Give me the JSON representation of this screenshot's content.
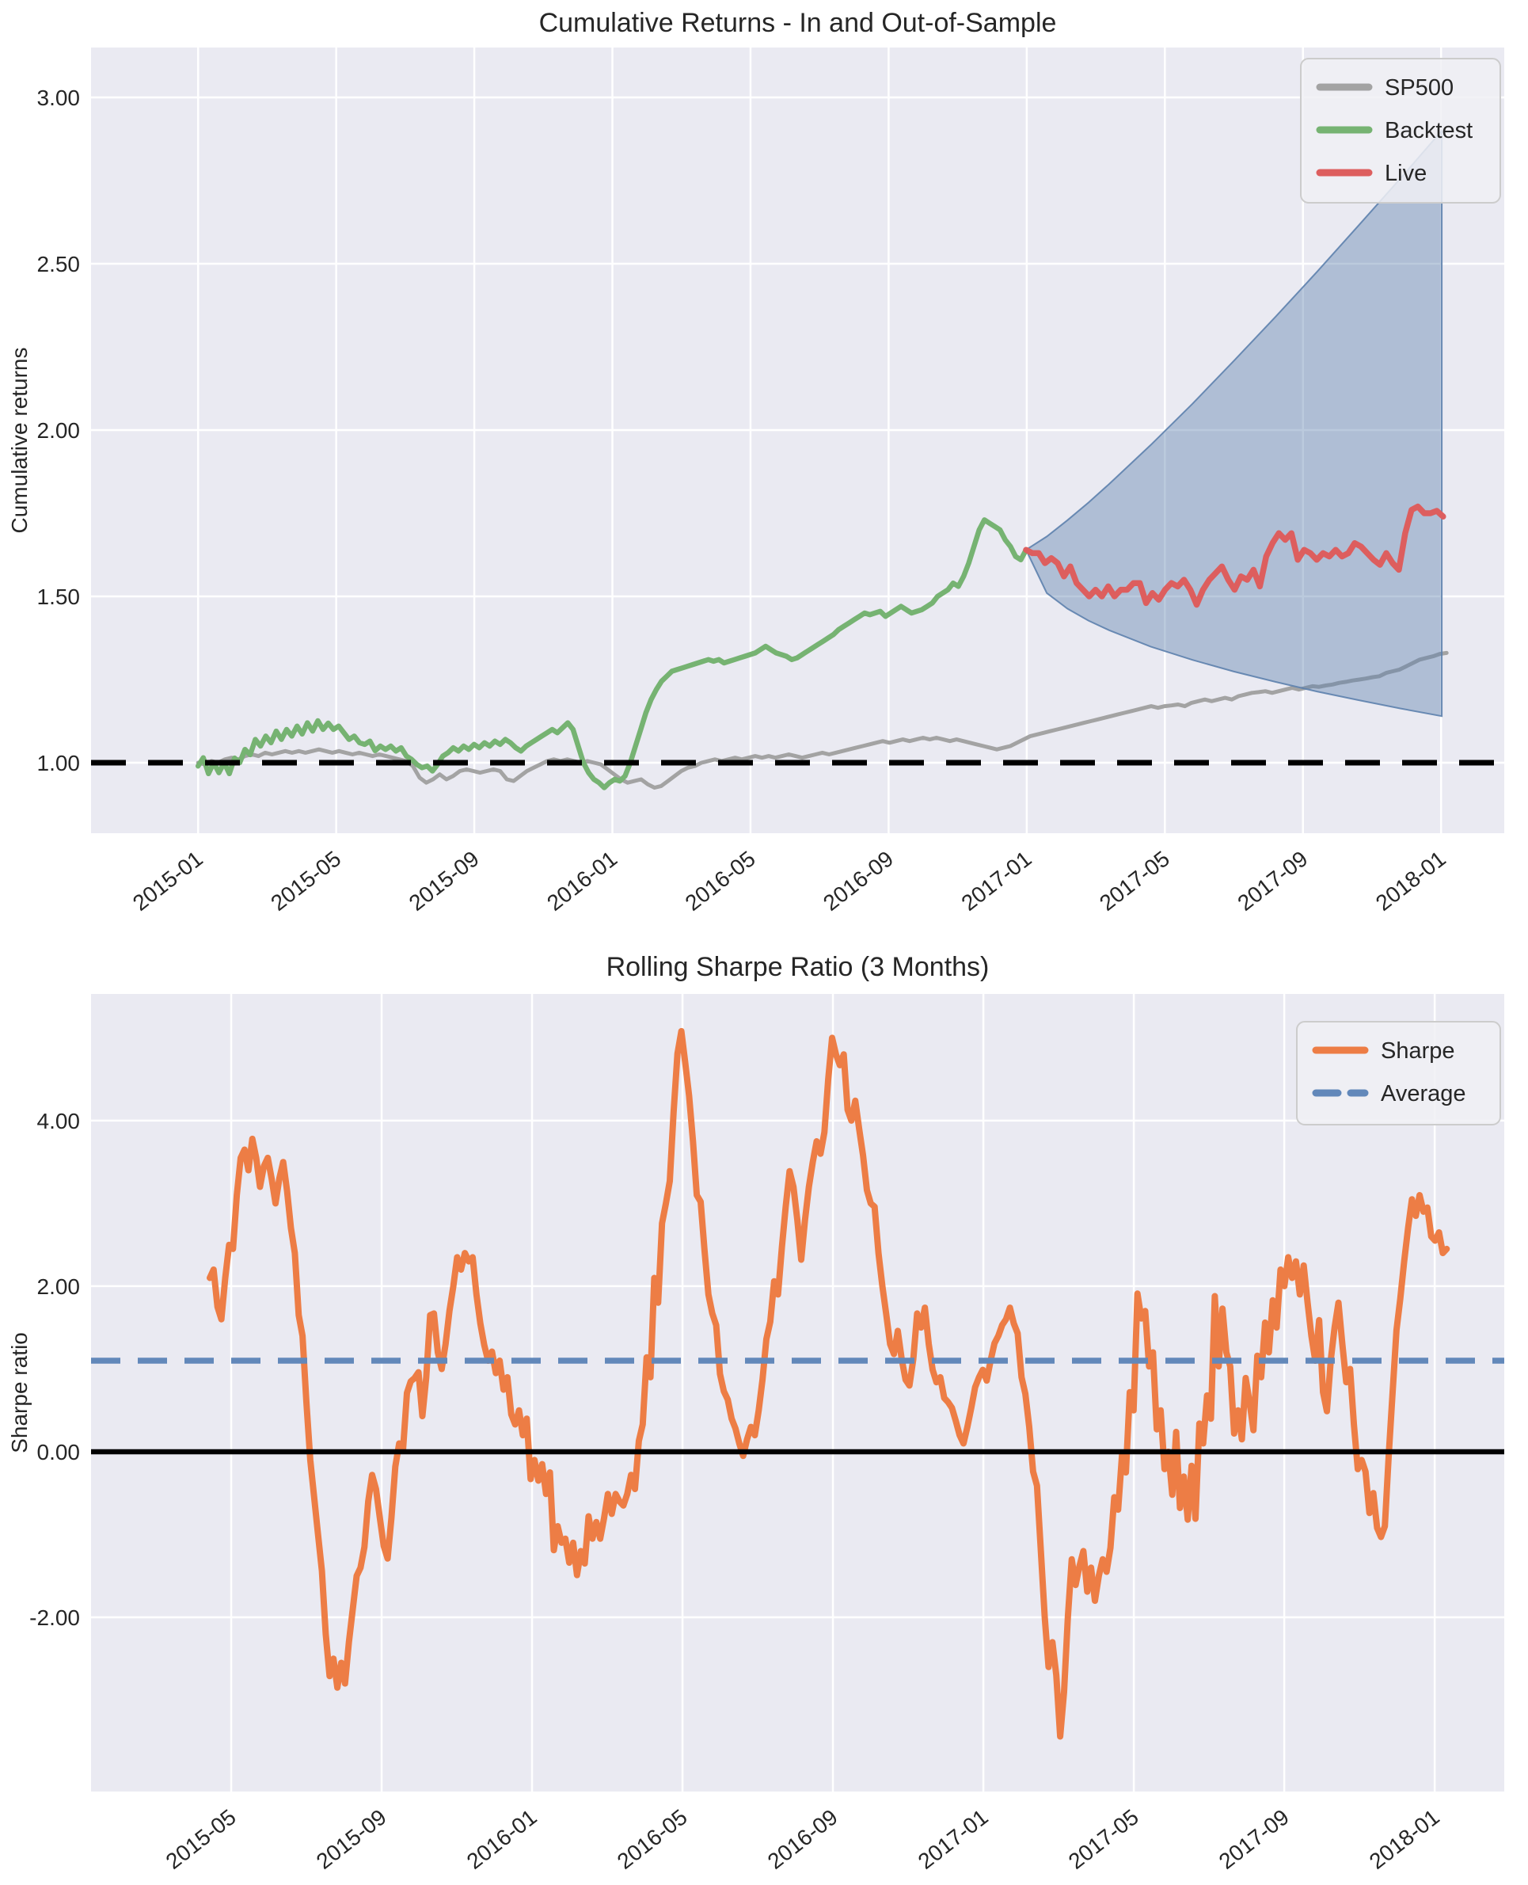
{
  "figure": {
    "background": "#ffffff",
    "plot_background": "#eaeaf2",
    "grid_color": "#ffffff",
    "text_color": "#262626"
  },
  "chart_data": [
    {
      "type": "line",
      "title": "Cumulative Returns - In and Out-of-Sample",
      "ylabel": "Cumulative returns",
      "x_unit": "months since 2015-01",
      "xlim": [
        -3.1,
        37.83
      ],
      "ylim": [
        0.788,
        3.15
      ],
      "grid": true,
      "legend_position": "upper right",
      "xticks": [
        {
          "m": 0,
          "label": "2015-01"
        },
        {
          "m": 4,
          "label": "2015-05"
        },
        {
          "m": 8,
          "label": "2015-09"
        },
        {
          "m": 12,
          "label": "2016-01"
        },
        {
          "m": 16,
          "label": "2016-05"
        },
        {
          "m": 20,
          "label": "2016-09"
        },
        {
          "m": 24,
          "label": "2017-01"
        },
        {
          "m": 28,
          "label": "2017-05"
        },
        {
          "m": 32,
          "label": "2017-09"
        },
        {
          "m": 36,
          "label": "2018-01"
        }
      ],
      "yticks": [
        {
          "v": 1.0,
          "label": "1.00"
        },
        {
          "v": 1.5,
          "label": "1.50"
        },
        {
          "v": 2.0,
          "label": "2.00"
        },
        {
          "v": 2.5,
          "label": "2.50"
        },
        {
          "v": 3.0,
          "label": "3.00"
        }
      ],
      "legend": [
        {
          "label": "SP500",
          "color": "#a3a3a3",
          "dash": false
        },
        {
          "label": "Backtest",
          "color": "#76b372",
          "dash": false
        },
        {
          "label": "Live",
          "color": "#dd5e5e",
          "dash": false
        }
      ],
      "baseline": {
        "v": 1.0,
        "color": "#000000",
        "style": "dashed"
      },
      "series": [
        {
          "name": "SP500",
          "color": "#a3a3a3",
          "width": 5,
          "x_start": 0,
          "x_end": 36.16,
          "values": [
            1.0,
            0.995,
            1.005,
            1.0,
            1.01,
            1.015,
            1.01,
            1.02,
            1.025,
            1.02,
            1.03,
            1.025,
            1.03,
            1.035,
            1.03,
            1.035,
            1.03,
            1.035,
            1.04,
            1.035,
            1.03,
            1.035,
            1.03,
            1.025,
            1.03,
            1.025,
            1.02,
            1.025,
            1.02,
            1.015,
            1.01,
            1.005,
            0.99,
            0.955,
            0.94,
            0.95,
            0.965,
            0.95,
            0.96,
            0.975,
            0.98,
            0.975,
            0.97,
            0.975,
            0.98,
            0.975,
            0.95,
            0.945,
            0.96,
            0.975,
            0.985,
            0.995,
            1.005,
            1.01,
            1.005,
            1.01,
            1.005,
            1.0,
            1.005,
            1.0,
            0.995,
            0.98,
            0.965,
            0.95,
            0.94,
            0.945,
            0.95,
            0.935,
            0.925,
            0.93,
            0.945,
            0.96,
            0.975,
            0.985,
            0.99,
            1.0,
            1.005,
            1.01,
            1.005,
            1.01,
            1.015,
            1.01,
            1.015,
            1.02,
            1.015,
            1.02,
            1.015,
            1.02,
            1.025,
            1.02,
            1.015,
            1.02,
            1.025,
            1.03,
            1.025,
            1.03,
            1.035,
            1.04,
            1.045,
            1.05,
            1.055,
            1.06,
            1.065,
            1.06,
            1.065,
            1.07,
            1.065,
            1.07,
            1.075,
            1.07,
            1.075,
            1.07,
            1.065,
            1.07,
            1.065,
            1.06,
            1.055,
            1.05,
            1.045,
            1.04,
            1.045,
            1.05,
            1.06,
            1.07,
            1.08,
            1.085,
            1.09,
            1.095,
            1.1,
            1.105,
            1.11,
            1.115,
            1.12,
            1.125,
            1.13,
            1.135,
            1.14,
            1.145,
            1.15,
            1.155,
            1.16,
            1.165,
            1.17,
            1.165,
            1.17,
            1.172,
            1.175,
            1.17,
            1.18,
            1.185,
            1.19,
            1.185,
            1.19,
            1.195,
            1.19,
            1.2,
            1.205,
            1.21,
            1.212,
            1.215,
            1.21,
            1.215,
            1.22,
            1.225,
            1.22,
            1.225,
            1.23,
            1.228,
            1.232,
            1.235,
            1.24,
            1.243,
            1.247,
            1.25,
            1.253,
            1.257,
            1.26,
            1.27,
            1.275,
            1.28,
            1.29,
            1.3,
            1.31,
            1.315,
            1.32,
            1.327,
            1.33
          ]
        },
        {
          "name": "Backtest",
          "color": "#76b372",
          "width": 6.5,
          "x_start": 0,
          "x_end": 23.98,
          "values": [
            0.99,
            1.015,
            0.967,
            1.0,
            0.97,
            1.0,
            0.967,
            1.014,
            1.0,
            1.04,
            1.024,
            1.07,
            1.05,
            1.08,
            1.06,
            1.095,
            1.07,
            1.1,
            1.08,
            1.11,
            1.086,
            1.12,
            1.095,
            1.126,
            1.1,
            1.119,
            1.1,
            1.11,
            1.09,
            1.07,
            1.08,
            1.06,
            1.055,
            1.065,
            1.036,
            1.05,
            1.04,
            1.05,
            1.035,
            1.045,
            1.02,
            1.01,
            0.995,
            0.985,
            0.99,
            0.975,
            0.995,
            1.02,
            1.03,
            1.045,
            1.035,
            1.05,
            1.04,
            1.055,
            1.045,
            1.06,
            1.05,
            1.065,
            1.055,
            1.07,
            1.06,
            1.045,
            1.035,
            1.05,
            1.06,
            1.07,
            1.08,
            1.09,
            1.1,
            1.09,
            1.105,
            1.12,
            1.1,
            1.05,
            1.0,
            0.97,
            0.95,
            0.94,
            0.925,
            0.94,
            0.95,
            0.945,
            0.96,
            1.0,
            1.05,
            1.1,
            1.15,
            1.19,
            1.22,
            1.245,
            1.26,
            1.275,
            1.28,
            1.285,
            1.29,
            1.295,
            1.3,
            1.305,
            1.31,
            1.305,
            1.31,
            1.3,
            1.305,
            1.31,
            1.315,
            1.32,
            1.325,
            1.33,
            1.34,
            1.35,
            1.34,
            1.33,
            1.325,
            1.32,
            1.31,
            1.315,
            1.325,
            1.335,
            1.345,
            1.355,
            1.365,
            1.375,
            1.385,
            1.4,
            1.41,
            1.42,
            1.43,
            1.44,
            1.45,
            1.445,
            1.45,
            1.455,
            1.44,
            1.45,
            1.46,
            1.47,
            1.46,
            1.45,
            1.455,
            1.46,
            1.47,
            1.48,
            1.5,
            1.51,
            1.52,
            1.54,
            1.53,
            1.56,
            1.6,
            1.65,
            1.7,
            1.73,
            1.72,
            1.71,
            1.7,
            1.67,
            1.65,
            1.62,
            1.61,
            1.64
          ]
        },
        {
          "name": "Live",
          "color": "#dd5e5e",
          "width": 7.5,
          "x_start": 23.98,
          "x_end": 36.06,
          "values": [
            1.64,
            1.63,
            1.63,
            1.6,
            1.615,
            1.6,
            1.56,
            1.59,
            1.54,
            1.52,
            1.5,
            1.52,
            1.5,
            1.53,
            1.5,
            1.52,
            1.52,
            1.54,
            1.54,
            1.48,
            1.51,
            1.49,
            1.52,
            1.54,
            1.53,
            1.55,
            1.52,
            1.475,
            1.52,
            1.55,
            1.57,
            1.59,
            1.55,
            1.52,
            1.56,
            1.55,
            1.58,
            1.53,
            1.62,
            1.66,
            1.69,
            1.67,
            1.69,
            1.61,
            1.64,
            1.63,
            1.61,
            1.63,
            1.62,
            1.64,
            1.62,
            1.63,
            1.66,
            1.65,
            1.63,
            1.61,
            1.595,
            1.63,
            1.6,
            1.58,
            1.69,
            1.76,
            1.77,
            1.75,
            1.75,
            1.757,
            1.74
          ]
        }
      ],
      "cone": {
        "name": "out-of-sample forecast cone",
        "fill_color": "#5d81ad",
        "fill_opacity": 0.42,
        "edge_color": "#5d81ad",
        "points_m_top_bottom": [
          [
            23.98,
            1.64,
            1.64
          ],
          [
            24.58,
            1.68,
            1.51
          ],
          [
            25.18,
            1.729,
            1.463
          ],
          [
            25.79,
            1.782,
            1.427
          ],
          [
            26.39,
            1.838,
            1.398
          ],
          [
            27.59,
            1.955,
            1.349
          ],
          [
            28.8,
            2.079,
            1.309
          ],
          [
            30.0,
            2.208,
            1.274
          ],
          [
            31.2,
            2.34,
            1.243
          ],
          [
            32.41,
            2.476,
            1.214
          ],
          [
            33.61,
            2.615,
            1.188
          ],
          [
            34.82,
            2.756,
            1.163
          ],
          [
            36.02,
            2.9,
            1.14
          ]
        ]
      }
    },
    {
      "type": "line",
      "title": "Rolling Sharpe Ratio (3 Months)",
      "ylabel": "Sharpe ratio",
      "x_unit": "months since 2015-01",
      "xlim": [
        0.273,
        37.85
      ],
      "ylim": [
        -4.105,
        5.53
      ],
      "grid": true,
      "legend_position": "upper right",
      "xticks": [
        {
          "m": 4,
          "label": "2015-05"
        },
        {
          "m": 8,
          "label": "2015-09"
        },
        {
          "m": 12,
          "label": "2016-01"
        },
        {
          "m": 16,
          "label": "2016-05"
        },
        {
          "m": 20,
          "label": "2016-09"
        },
        {
          "m": 24,
          "label": "2017-01"
        },
        {
          "m": 28,
          "label": "2017-05"
        },
        {
          "m": 32,
          "label": "2017-09"
        },
        {
          "m": 36,
          "label": "2018-01"
        }
      ],
      "yticks": [
        {
          "v": -2.0,
          "label": "-2.00"
        },
        {
          "v": 0.0,
          "label": "0.00"
        },
        {
          "v": 2.0,
          "label": "2.00"
        },
        {
          "v": 4.0,
          "label": "4.00"
        }
      ],
      "legend": [
        {
          "label": "Sharpe",
          "color": "#ed7d45",
          "dash": false
        },
        {
          "label": "Average",
          "color": "#6288ba",
          "dash": true
        }
      ],
      "average_line": {
        "v": 1.1,
        "color": "#6288ba",
        "style": "dashed"
      },
      "zero_line": {
        "v": 0.0,
        "color": "#000000",
        "style": "solid"
      },
      "series": [
        {
          "name": "Sharpe",
          "color": "#ed7d45",
          "width": 8,
          "x_start": 3.43,
          "x_end": 36.32,
          "values": [
            2.1,
            2.2,
            1.75,
            1.6,
            2.1,
            2.5,
            2.45,
            3.1,
            3.55,
            3.65,
            3.4,
            3.78,
            3.55,
            3.2,
            3.45,
            3.55,
            3.3,
            3.0,
            3.3,
            3.5,
            3.15,
            2.7,
            2.4,
            1.65,
            1.4,
            0.6,
            -0.1,
            -0.55,
            -1.0,
            -1.44,
            -2.2,
            -2.71,
            -2.5,
            -2.85,
            -2.55,
            -2.8,
            -2.3,
            -1.9,
            -1.5,
            -1.4,
            -1.15,
            -0.6,
            -0.28,
            -0.45,
            -0.8,
            -1.14,
            -1.29,
            -0.8,
            -0.18,
            0.1,
            0.03,
            0.71,
            0.85,
            0.89,
            0.96,
            0.43,
            0.9,
            1.65,
            1.67,
            1.2,
            1.0,
            1.3,
            1.7,
            2.0,
            2.35,
            2.2,
            2.4,
            2.3,
            2.35,
            1.9,
            1.55,
            1.29,
            1.1,
            1.21,
            0.95,
            1.1,
            0.75,
            0.9,
            0.45,
            0.33,
            0.5,
            0.2,
            0.4,
            -0.33,
            -0.1,
            -0.35,
            -0.15,
            -0.51,
            -0.25,
            -1.19,
            -0.9,
            -1.1,
            -1.05,
            -1.34,
            -1.1,
            -1.49,
            -1.2,
            -1.35,
            -0.78,
            -1.05,
            -0.85,
            -1.05,
            -0.8,
            -0.51,
            -0.75,
            -0.51,
            -0.6,
            -0.65,
            -0.51,
            -0.28,
            -0.45,
            0.13,
            0.33,
            1.14,
            0.9,
            2.1,
            1.8,
            2.76,
            3.0,
            3.27,
            4.1,
            4.81,
            5.08,
            4.7,
            4.3,
            3.75,
            3.1,
            3.02,
            2.43,
            1.9,
            1.67,
            1.53,
            0.94,
            0.73,
            0.63,
            0.4,
            0.28,
            0.1,
            -0.05,
            0.15,
            0.3,
            0.2,
            0.5,
            0.87,
            1.36,
            1.57,
            2.06,
            1.9,
            2.47,
            2.96,
            3.39,
            3.2,
            2.8,
            2.32,
            2.8,
            3.2,
            3.5,
            3.75,
            3.6,
            3.86,
            4.5,
            5.0,
            4.8,
            4.67,
            4.8,
            4.13,
            4.0,
            4.24,
            3.9,
            3.58,
            3.16,
            3.0,
            2.96,
            2.4,
            2.0,
            1.66,
            1.3,
            1.18,
            1.46,
            1.12,
            0.87,
            0.8,
            1.12,
            1.67,
            1.5,
            1.74,
            1.3,
            0.99,
            0.84,
            0.9,
            0.65,
            0.6,
            0.53,
            0.37,
            0.2,
            0.1,
            0.3,
            0.53,
            0.78,
            0.9,
            0.99,
            0.86,
            1.1,
            1.31,
            1.4,
            1.53,
            1.6,
            1.74,
            1.55,
            1.43,
            0.9,
            0.7,
            0.3,
            -0.24,
            -0.41,
            -1.2,
            -2.0,
            -2.6,
            -2.3,
            -2.7,
            -3.44,
            -2.9,
            -2.0,
            -1.3,
            -1.61,
            -1.38,
            -1.2,
            -1.69,
            -1.4,
            -1.8,
            -1.5,
            -1.3,
            -1.45,
            -1.16,
            -0.55,
            -0.7,
            -0.04,
            -0.25,
            0.72,
            0.5,
            1.91,
            1.61,
            1.7,
            1.03,
            1.2,
            0.27,
            0.5,
            -0.21,
            0.0,
            -0.52,
            0.24,
            -0.68,
            -0.3,
            -0.82,
            -0.17,
            -0.81,
            0.34,
            0.1,
            0.68,
            0.4,
            1.88,
            1.03,
            1.73,
            1.2,
            1.03,
            0.22,
            0.5,
            0.15,
            0.89,
            0.6,
            0.26,
            1.16,
            0.9,
            1.56,
            1.2,
            1.83,
            1.5,
            2.2,
            2.0,
            2.35,
            2.1,
            2.3,
            1.9,
            2.25,
            1.8,
            1.4,
            1.1,
            1.59,
            0.72,
            0.49,
            1.11,
            1.5,
            1.8,
            1.3,
            0.84,
            1.0,
            0.33,
            -0.21,
            -0.1,
            -0.24,
            -0.74,
            -0.5,
            -0.92,
            -1.03,
            -0.9,
            -0.04,
            0.72,
            1.47,
            1.85,
            2.3,
            2.7,
            3.05,
            2.85,
            3.1,
            2.9,
            2.95,
            2.6,
            2.55,
            2.65,
            2.4,
            2.45
          ]
        }
      ]
    }
  ]
}
